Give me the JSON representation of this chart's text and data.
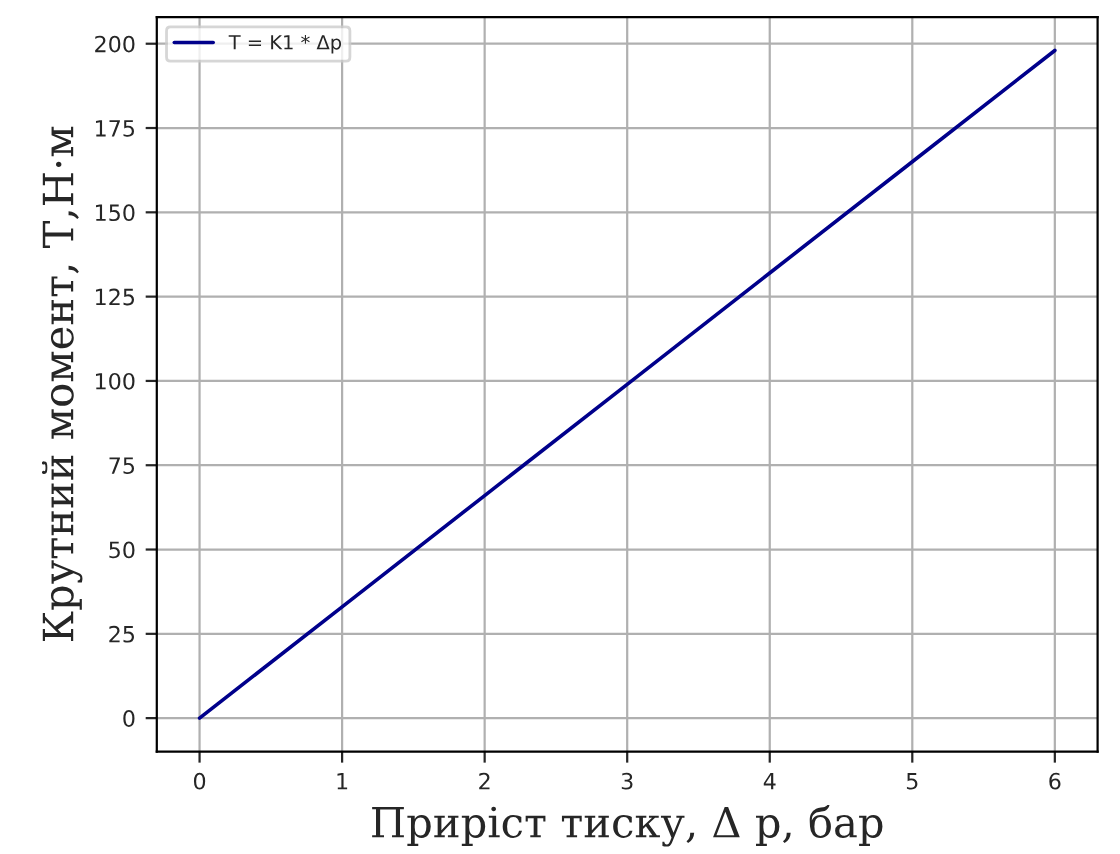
{
  "chart_data": {
    "type": "line",
    "xlabel": "Приріст тиску, Δ p, бар",
    "ylabel": "Крутний момент, Т,Н·м",
    "x": [
      0,
      1,
      2,
      3,
      4,
      5,
      6
    ],
    "series": [
      {
        "name": "T = K1 * Δp",
        "color": "#00008b",
        "values": [
          0,
          33,
          66,
          99,
          132,
          165,
          198
        ]
      }
    ],
    "xlim": [
      -0.3,
      6.3
    ],
    "ylim": [
      -9.9,
      207.9
    ],
    "xticks": [
      0,
      1,
      2,
      3,
      4,
      5,
      6
    ],
    "yticks": [
      0,
      25,
      50,
      75,
      100,
      125,
      150,
      175,
      200
    ],
    "grid": true,
    "legend": "top left",
    "marker": "none",
    "line_style": "solid"
  }
}
